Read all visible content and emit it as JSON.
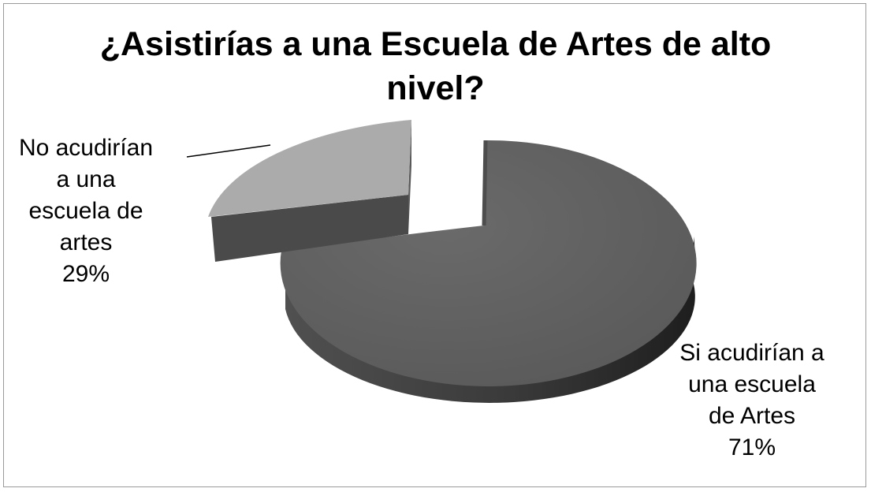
{
  "chart_data": {
    "type": "pie",
    "title_lines": [
      "¿Asistirías a una Escuela de Artes de alto",
      "nivel?"
    ],
    "slices": [
      {
        "label_lines": [
          "Si acudirían a",
          "una escuela",
          "de Artes"
        ],
        "percent_label": "71%",
        "value": 71,
        "exploded": false,
        "color_top": "#616161",
        "color_side": "#3d3d3d"
      },
      {
        "label_lines": [
          "No acudirían",
          "a una",
          "escuela de",
          "artes"
        ],
        "percent_label": "29%",
        "value": 29,
        "exploded": true,
        "color_top": "#ababab",
        "color_side": "#4a4a4a"
      }
    ],
    "legend": "none",
    "grid": false,
    "style": "3d-exploded"
  }
}
